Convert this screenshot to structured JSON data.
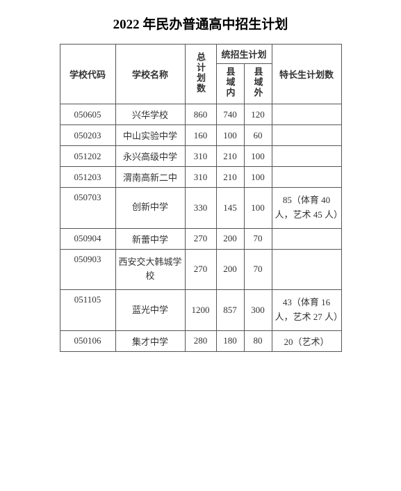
{
  "title": "2022 年民办普通高中招生计划",
  "headers": {
    "code": "学校代码",
    "name": "学校名称",
    "total": "总计划数",
    "unified": "统招生计划",
    "inside": "县域内",
    "outside": "县域外",
    "special": "特长生计划数"
  },
  "rows": [
    {
      "code": "050605",
      "name": "兴华学校",
      "total": "860",
      "in": "740",
      "out": "120",
      "spec": ""
    },
    {
      "code": "050203",
      "name": "中山实验中学",
      "total": "160",
      "in": "100",
      "out": "60",
      "spec": ""
    },
    {
      "code": "051202",
      "name": "永兴高级中学",
      "total": "310",
      "in": "210",
      "out": "100",
      "spec": ""
    },
    {
      "code": "051203",
      "name": "渭南高新二中",
      "total": "310",
      "in": "210",
      "out": "100",
      "spec": ""
    },
    {
      "code": "050703",
      "name": "创新中学",
      "total": "330",
      "in": "145",
      "out": "100",
      "spec": "85（体育 40 人，艺术 45 人）"
    },
    {
      "code": "050904",
      "name": "新蕾中学",
      "total": "270",
      "in": "200",
      "out": "70",
      "spec": ""
    },
    {
      "code": "050903",
      "name": "西安交大韩城学校",
      "total": "270",
      "in": "200",
      "out": "70",
      "spec": ""
    },
    {
      "code": "051105",
      "name": "蓝光中学",
      "total": "1200",
      "in": "857",
      "out": "300",
      "spec": "43（体育 16 人，艺术 27 人）"
    },
    {
      "code": "050106",
      "name": "集才中学",
      "total": "280",
      "in": "180",
      "out": "80",
      "spec": "20（艺术）"
    }
  ],
  "styles": {
    "background": "#ffffff",
    "border_color": "#555555",
    "text_color": "#333333",
    "title_fontsize": 19,
    "body_fontsize": 13,
    "col_widths": {
      "code": 80,
      "name": 100,
      "total": 45,
      "in": 40,
      "out": 40,
      "spec": 100
    }
  }
}
